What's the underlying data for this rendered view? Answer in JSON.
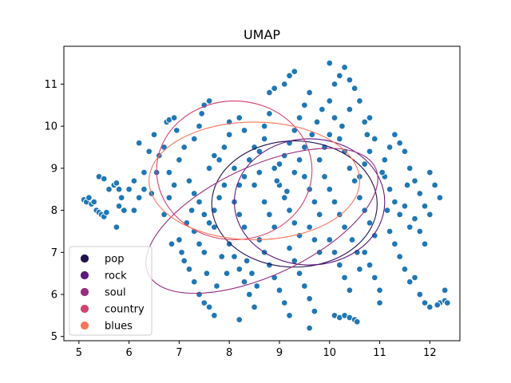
{
  "chart_data": {
    "type": "scatter",
    "title": "UMAP",
    "xlabel": "",
    "ylabel": "",
    "xlim": [
      4.7,
      12.6
    ],
    "ylim": [
      4.9,
      11.9
    ],
    "xticks": [
      5,
      6,
      7,
      8,
      9,
      10,
      11,
      12
    ],
    "yticks": [
      5,
      6,
      7,
      8,
      9,
      10,
      11
    ],
    "grid": false,
    "legend_placement": "lower-left",
    "point_color": "#1f77b4",
    "point_edge": "#ffffff",
    "points": [
      [
        5.1,
        8.25
      ],
      [
        5.15,
        8.2
      ],
      [
        5.2,
        8.3
      ],
      [
        5.25,
        8.15
      ],
      [
        5.3,
        8.2
      ],
      [
        5.35,
        8.0
      ],
      [
        5.4,
        7.95
      ],
      [
        5.45,
        7.9
      ],
      [
        5.5,
        7.85
      ],
      [
        5.55,
        7.95
      ],
      [
        5.4,
        8.8
      ],
      [
        5.5,
        8.75
      ],
      [
        5.6,
        8.5
      ],
      [
        5.7,
        8.6
      ],
      [
        5.75,
        8.65
      ],
      [
        5.8,
        8.5
      ],
      [
        5.85,
        8.3
      ],
      [
        5.8,
        8.1
      ],
      [
        5.9,
        8.0
      ],
      [
        5.75,
        7.6
      ],
      [
        6.1,
        8.0
      ],
      [
        6.2,
        8.3
      ],
      [
        6.3,
        8.5
      ],
      [
        6.3,
        8.9
      ],
      [
        6.2,
        9.6
      ],
      [
        6.4,
        9.4
      ],
      [
        6.5,
        9.8
      ],
      [
        6.6,
        9.3
      ],
      [
        6.7,
        9.5
      ],
      [
        6.75,
        10.1
      ],
      [
        6.8,
        10.15
      ],
      [
        6.9,
        10.2
      ],
      [
        6.8,
        8.9
      ],
      [
        6.9,
        8.6
      ],
      [
        6.8,
        8.3
      ],
      [
        6.7,
        7.9
      ],
      [
        6.85,
        7.2
      ],
      [
        7.0,
        7.3
      ],
      [
        7.05,
        7.0
      ],
      [
        7.1,
        6.8
      ],
      [
        7.2,
        6.6
      ],
      [
        7.3,
        6.3
      ],
      [
        7.4,
        6.0
      ],
      [
        7.5,
        5.8
      ],
      [
        7.6,
        5.7
      ],
      [
        7.7,
        5.5
      ],
      [
        7.3,
        9.7
      ],
      [
        7.4,
        10.0
      ],
      [
        7.45,
        10.3
      ],
      [
        7.5,
        10.5
      ],
      [
        7.6,
        10.6
      ],
      [
        7.2,
        8.7
      ],
      [
        7.3,
        8.4
      ],
      [
        7.4,
        8.2
      ],
      [
        7.5,
        7.9
      ],
      [
        7.6,
        7.7
      ],
      [
        7.7,
        7.6
      ],
      [
        7.3,
        7.5
      ],
      [
        7.4,
        7.2
      ],
      [
        7.5,
        7.0
      ],
      [
        7.8,
        9.2
      ],
      [
        7.9,
        9.5
      ],
      [
        8.0,
        9.8
      ],
      [
        8.0,
        10.1
      ],
      [
        8.1,
        9.0
      ],
      [
        8.2,
        8.6
      ],
      [
        8.3,
        8.8
      ],
      [
        8.1,
        8.2
      ],
      [
        8.2,
        7.9
      ],
      [
        8.3,
        7.6
      ],
      [
        8.0,
        7.2
      ],
      [
        8.1,
        6.9
      ],
      [
        8.2,
        6.6
      ],
      [
        8.3,
        6.3
      ],
      [
        8.4,
        6.0
      ],
      [
        8.5,
        5.7
      ],
      [
        8.2,
        5.4
      ],
      [
        8.6,
        9.4
      ],
      [
        8.7,
        9.7
      ],
      [
        8.7,
        10.0
      ],
      [
        8.8,
        10.3
      ],
      [
        8.8,
        10.8
      ],
      [
        8.9,
        10.9
      ],
      [
        8.5,
        8.6
      ],
      [
        8.6,
        8.9
      ],
      [
        8.7,
        8.2
      ],
      [
        8.8,
        7.9
      ],
      [
        8.9,
        7.6
      ],
      [
        8.6,
        7.3
      ],
      [
        8.7,
        7.0
      ],
      [
        8.8,
        6.7
      ],
      [
        8.9,
        6.4
      ],
      [
        9.0,
        6.1
      ],
      [
        9.1,
        5.8
      ],
      [
        9.2,
        5.5
      ],
      [
        9.0,
        9.1
      ],
      [
        9.1,
        9.3
      ],
      [
        9.2,
        9.6
      ],
      [
        9.3,
        9.9
      ],
      [
        9.4,
        10.2
      ],
      [
        9.5,
        10.5
      ],
      [
        9.6,
        10.8
      ],
      [
        9.1,
        11.0
      ],
      [
        9.2,
        11.2
      ],
      [
        9.3,
        11.3
      ],
      [
        9.0,
        8.6
      ],
      [
        9.1,
        8.3
      ],
      [
        9.2,
        8.0
      ],
      [
        9.3,
        7.7
      ],
      [
        9.4,
        7.4
      ],
      [
        9.2,
        7.1
      ],
      [
        9.3,
        6.8
      ],
      [
        9.4,
        6.5
      ],
      [
        9.5,
        6.2
      ],
      [
        9.6,
        5.9
      ],
      [
        9.7,
        5.6
      ],
      [
        9.6,
        5.2
      ],
      [
        9.8,
        9.2
      ],
      [
        9.9,
        9.5
      ],
      [
        10.0,
        9.8
      ],
      [
        10.1,
        10.2
      ],
      [
        10.0,
        10.6
      ],
      [
        10.1,
        11.0
      ],
      [
        10.2,
        11.2
      ],
      [
        10.3,
        11.4
      ],
      [
        10.0,
        11.5
      ],
      [
        10.4,
        11.1
      ],
      [
        10.5,
        10.9
      ],
      [
        10.6,
        10.6
      ],
      [
        10.4,
        10.4
      ],
      [
        9.9,
        8.8
      ],
      [
        10.0,
        8.5
      ],
      [
        10.1,
        8.2
      ],
      [
        10.2,
        7.9
      ],
      [
        10.3,
        7.6
      ],
      [
        10.0,
        7.3
      ],
      [
        10.1,
        7.0
      ],
      [
        10.2,
        6.7
      ],
      [
        10.3,
        6.4
      ],
      [
        10.4,
        6.1
      ],
      [
        10.1,
        5.5
      ],
      [
        10.2,
        5.45
      ],
      [
        10.3,
        5.5
      ],
      [
        10.4,
        5.45
      ],
      [
        10.5,
        5.4
      ],
      [
        10.55,
        5.35
      ],
      [
        10.6,
        8.8
      ],
      [
        10.7,
        9.1
      ],
      [
        10.8,
        9.4
      ],
      [
        10.9,
        9.7
      ],
      [
        10.7,
        10.1
      ],
      [
        10.8,
        10.2
      ],
      [
        10.6,
        8.3
      ],
      [
        10.7,
        8.0
      ],
      [
        10.8,
        7.7
      ],
      [
        10.9,
        7.4
      ],
      [
        10.7,
        7.0
      ],
      [
        10.8,
        6.7
      ],
      [
        10.9,
        6.4
      ],
      [
        11.0,
        6.1
      ],
      [
        11.0,
        5.8
      ],
      [
        11.1,
        9.2
      ],
      [
        11.2,
        9.5
      ],
      [
        11.3,
        9.8
      ],
      [
        11.4,
        9.6
      ],
      [
        11.5,
        9.4
      ],
      [
        11.1,
        8.8
      ],
      [
        11.2,
        8.5
      ],
      [
        11.3,
        8.2
      ],
      [
        11.4,
        7.9
      ],
      [
        11.2,
        7.5
      ],
      [
        11.3,
        7.2
      ],
      [
        11.4,
        6.9
      ],
      [
        11.5,
        6.6
      ],
      [
        11.6,
        6.3
      ],
      [
        11.6,
        9.0
      ],
      [
        11.7,
        8.7
      ],
      [
        11.8,
        8.4
      ],
      [
        11.9,
        8.1
      ],
      [
        11.7,
        7.8
      ],
      [
        11.8,
        7.5
      ],
      [
        11.9,
        7.2
      ],
      [
        12.0,
        8.9
      ],
      [
        12.1,
        8.6
      ],
      [
        12.2,
        8.3
      ],
      [
        12.0,
        7.9
      ],
      [
        11.7,
        6.4
      ],
      [
        11.8,
        6.0
      ],
      [
        11.9,
        5.8
      ],
      [
        12.0,
        5.7
      ],
      [
        12.2,
        5.8
      ],
      [
        12.3,
        5.85
      ],
      [
        12.35,
        5.8
      ],
      [
        12.3,
        6.1
      ],
      [
        12.15,
        5.75
      ],
      [
        9.5,
        8.8
      ],
      [
        9.6,
        8.5
      ],
      [
        9.7,
        8.2
      ],
      [
        9.8,
        7.9
      ],
      [
        9.6,
        7.6
      ],
      [
        9.7,
        7.3
      ],
      [
        9.8,
        7.0
      ],
      [
        9.5,
        9.5
      ],
      [
        9.4,
        9.2
      ],
      [
        9.3,
        8.9
      ],
      [
        8.4,
        9.2
      ],
      [
        8.5,
        9.5
      ],
      [
        8.3,
        9.9
      ],
      [
        8.2,
        10.2
      ],
      [
        7.9,
        8.6
      ],
      [
        7.8,
        8.3
      ],
      [
        7.7,
        8.0
      ],
      [
        7.0,
        9.2
      ],
      [
        7.1,
        9.5
      ],
      [
        6.95,
        9.9
      ],
      [
        7.6,
        9.0
      ],
      [
        7.7,
        9.3
      ],
      [
        8.9,
        9.0
      ],
      [
        8.95,
        8.7
      ],
      [
        9.15,
        8.45
      ],
      [
        10.4,
        9.0
      ],
      [
        10.5,
        8.7
      ],
      [
        10.3,
        9.4
      ],
      [
        10.2,
        9.7
      ],
      [
        10.45,
        7.3
      ],
      [
        10.55,
        7.0
      ],
      [
        10.6,
        6.6
      ],
      [
        8.45,
        6.5
      ],
      [
        8.55,
        6.2
      ],
      [
        8.35,
        6.8
      ],
      [
        7.85,
        6.9
      ],
      [
        7.95,
        6.5
      ],
      [
        7.75,
        6.2
      ],
      [
        7.55,
        6.5
      ],
      [
        11.05,
        8.9
      ],
      [
        11.15,
        8.0
      ],
      [
        11.5,
        8.1
      ],
      [
        11.55,
        8.6
      ],
      [
        11.6,
        7.6
      ],
      [
        6.55,
        8.9
      ],
      [
        6.45,
        8.4
      ],
      [
        6.0,
        8.5
      ],
      [
        6.1,
        8.7
      ],
      [
        7.25,
        8.0
      ],
      [
        7.15,
        7.7
      ],
      [
        9.85,
        10.4
      ],
      [
        9.75,
        10.1
      ],
      [
        9.65,
        9.8
      ],
      [
        10.75,
        9.8
      ],
      [
        10.25,
        10.0
      ]
    ],
    "ellipses": [
      {
        "cx": 9.3,
        "cy": 8.15,
        "rx": 1.65,
        "ry": 1.5,
        "angle": 0
      },
      {
        "cx": 9.6,
        "cy": 8.2,
        "rx": 1.5,
        "ry": 1.5,
        "angle": 0
      },
      {
        "cx": 8.65,
        "cy": 7.75,
        "rx": 2.5,
        "ry": 1.3,
        "angle": -25
      },
      {
        "cx": 8.1,
        "cy": 8.95,
        "rx": 1.55,
        "ry": 1.65,
        "angle": 0
      },
      {
        "cx": 8.5,
        "cy": 8.7,
        "rx": 2.1,
        "ry": 1.4,
        "angle": 0
      }
    ],
    "legend": [
      {
        "label": "pop",
        "color": "#221150"
      },
      {
        "label": "rock",
        "color": "#5f187f"
      },
      {
        "label": "soul",
        "color": "#982d80"
      },
      {
        "label": "country",
        "color": "#d3436e"
      },
      {
        "label": "blues",
        "color": "#f8765c"
      }
    ]
  }
}
